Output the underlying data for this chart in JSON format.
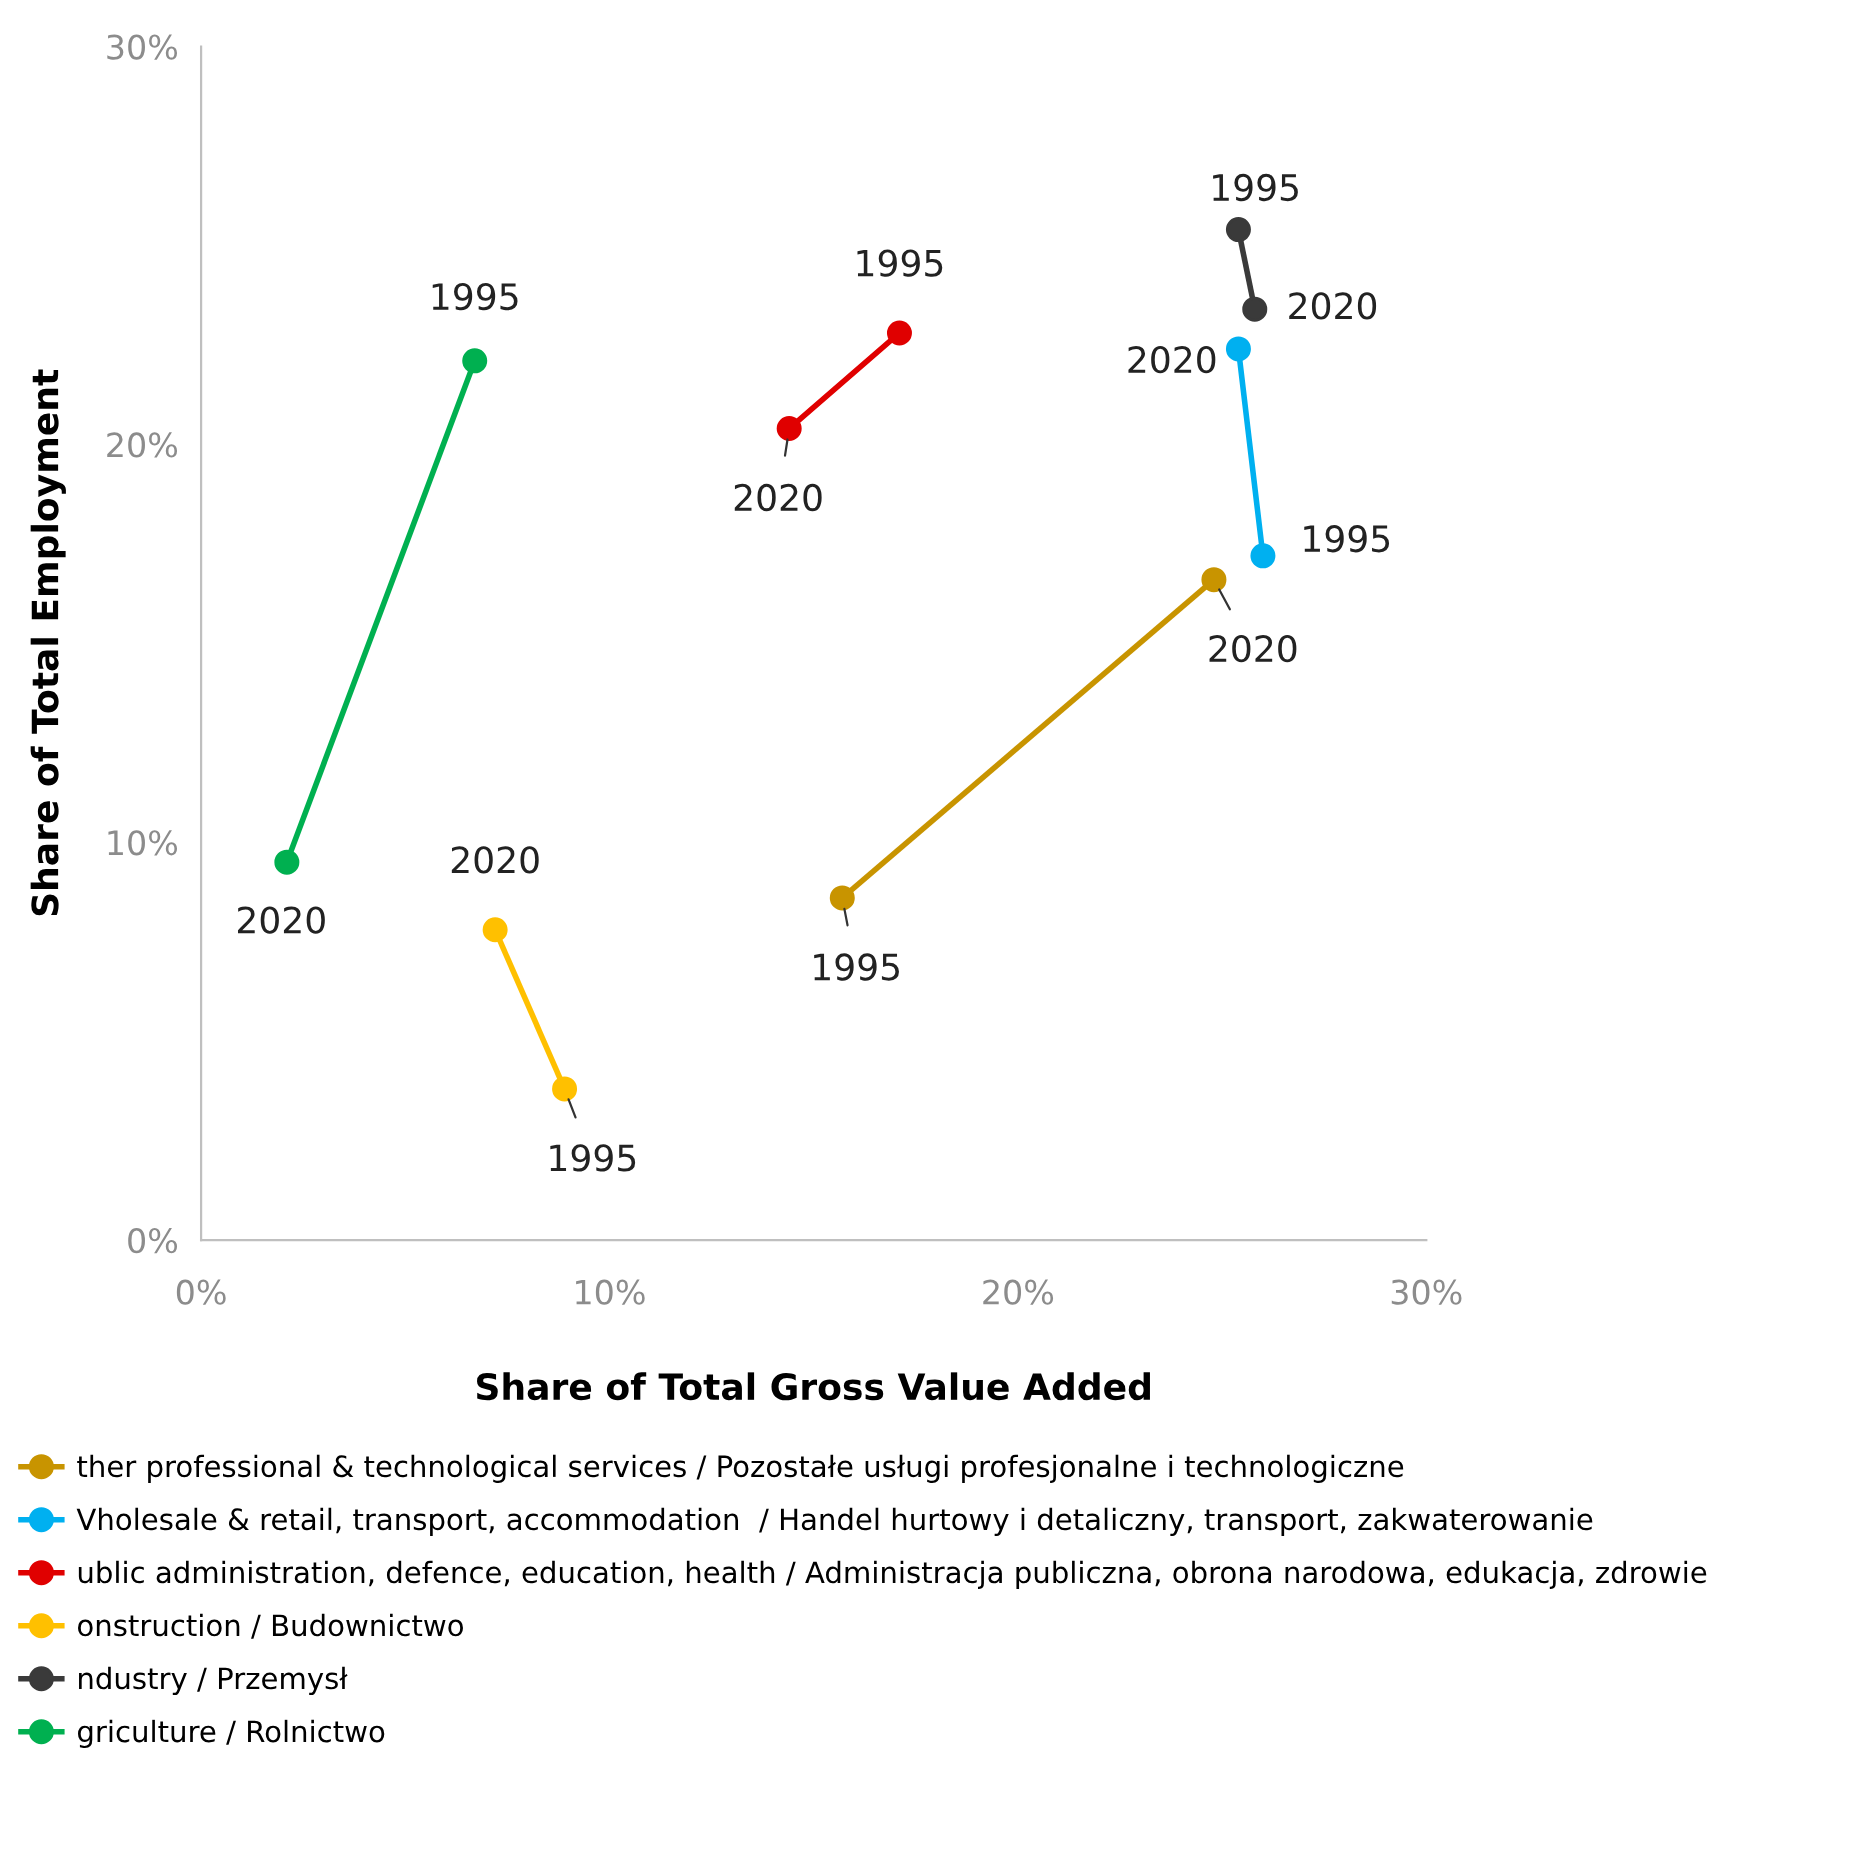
{
  "chart_data": {
    "type": "line",
    "xlabel": "Share of Total Gross Value Added",
    "ylabel": "Share of Total Employment",
    "xlim": [
      0,
      30
    ],
    "ylim": [
      0,
      30
    ],
    "xticks": [
      {
        "value": 0,
        "label": "0%"
      },
      {
        "value": 10,
        "label": "10%"
      },
      {
        "value": 20,
        "label": "20%"
      },
      {
        "value": 30,
        "label": "30%"
      }
    ],
    "yticks": [
      {
        "value": 0,
        "label": "0%"
      },
      {
        "value": 10,
        "label": "10%"
      },
      {
        "value": 20,
        "label": "20%"
      },
      {
        "value": 30,
        "label": "30%"
      }
    ],
    "marker": "circle",
    "line_style": "solid",
    "grid": false,
    "legend": "bottom",
    "series": [
      {
        "name": "ther professional & technological services / Pozostałe usługi profesjonalne i technologiczne",
        "color": "#c89400",
        "x": [
          15.7,
          24.8
        ],
        "values": [
          8.6,
          16.6
        ]
      },
      {
        "name": "Vholesale & retail, transport, accommodation  / Handel hurtowy i detaliczny, transport, zakwaterowanie",
        "color": "#00b0f0",
        "x": [
          26.0,
          25.4
        ],
        "values": [
          17.2,
          22.4
        ]
      },
      {
        "name": "ublic administration, defence, education, health / Administracja publiczna, obrona narodowa, edukacja, zdrowie",
        "color": "#e00000",
        "x": [
          17.1,
          14.4
        ],
        "values": [
          22.8,
          20.4
        ]
      },
      {
        "name": "onstruction / Budownictwo",
        "color": "#ffc000",
        "x": [
          8.9,
          7.2
        ],
        "values": [
          3.8,
          7.8
        ]
      },
      {
        "name": "ndustry / Przemysł",
        "color": "#3a3a3a",
        "x": [
          25.4,
          25.8
        ],
        "values": [
          25.4,
          23.4
        ]
      },
      {
        "name": "griculture / Rolnictwo",
        "color": "#00b050",
        "x": [
          6.7,
          2.1
        ],
        "values": [
          22.1,
          9.5
        ]
      }
    ],
    "annotations": [
      {
        "text": "1995",
        "x": 6.7,
        "y": 22.1
      },
      {
        "text": "2020",
        "x": 2.1,
        "y": 9.5
      },
      {
        "text": "2020",
        "x": 7.2,
        "y": 7.8
      },
      {
        "text": "1995",
        "x": 8.9,
        "y": 3.8
      },
      {
        "text": "1995",
        "x": 17.1,
        "y": 22.8
      },
      {
        "text": "2020",
        "x": 14.4,
        "y": 20.4
      },
      {
        "text": "1995",
        "x": 15.7,
        "y": 8.6
      },
      {
        "text": "2020",
        "x": 24.8,
        "y": 16.6
      },
      {
        "text": "1995",
        "x": 25.4,
        "y": 25.4
      },
      {
        "text": "2020",
        "x": 25.8,
        "y": 23.4
      },
      {
        "text": "1995",
        "x": 26.0,
        "y": 17.2
      },
      {
        "text": "2020",
        "x": 25.4,
        "y": 22.4
      }
    ]
  }
}
